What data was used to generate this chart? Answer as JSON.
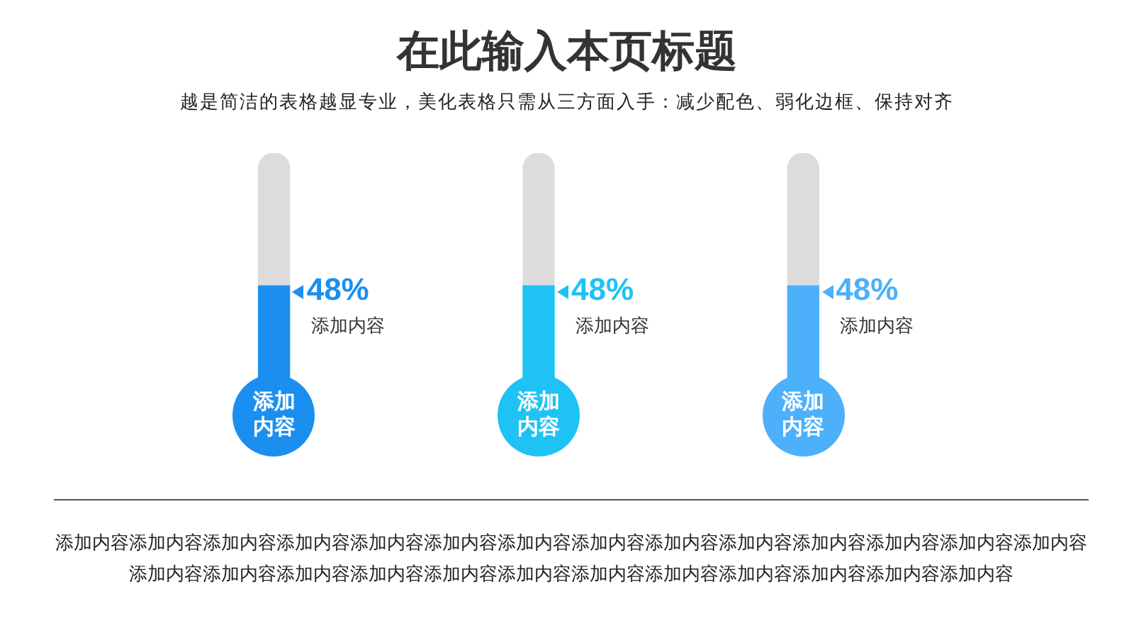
{
  "chart_data": {
    "type": "bar",
    "title": "在此输入本页标题",
    "subtitle": "越是简洁的表格越显专业，美化表格只需从三方面入手：减少配色、弱化边框、保持对齐",
    "categories": [
      "添加内容",
      "添加内容",
      "添加内容"
    ],
    "series": [
      {
        "colors": [
          "#1a8ff0",
          "#1ec2f4",
          "#4cb0fb"
        ],
        "values": [
          48,
          48,
          48
        ],
        "value_labels": [
          "48%",
          "48%",
          "48%"
        ]
      },
      {
        "color": "#dcdcdc",
        "values": [
          52,
          52,
          52
        ]
      }
    ],
    "stacked": true,
    "ylim": [
      0,
      100
    ],
    "legend": false,
    "tick_labels": "x",
    "annotations": [
      "添加内容",
      "添加内容",
      "添加内容",
      "添加内容添加内容添加内容添加内容添加内容添加内容添加内容添加内容添加内容添加内容添加内容添加内容添加内容添加内容添加内容添加内容添加内容添加内容添加内容添加内容添加内容添加内容添加内容添加内容添加内容添加内容"
    ]
  }
}
